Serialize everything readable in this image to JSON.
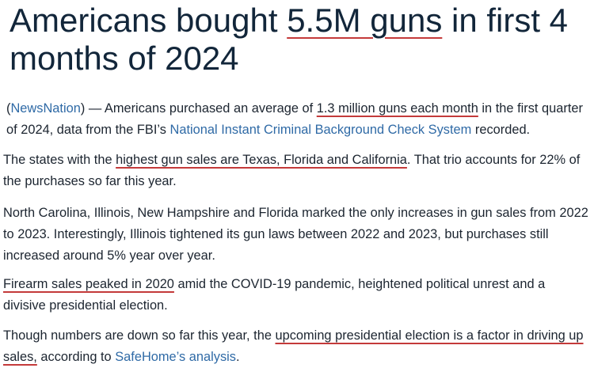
{
  "headline": {
    "segments": [
      {
        "text": "Americans bought ",
        "kind": "plain"
      },
      {
        "text": "5.5M guns",
        "kind": "marked"
      },
      {
        "text": " in first 4 months of 2024",
        "kind": "plain"
      }
    ]
  },
  "paragraphs": [
    {
      "segments": [
        {
          "text": "(",
          "kind": "plain"
        },
        {
          "text": "NewsNation",
          "kind": "link"
        },
        {
          "text": ") — Americans purchased an average of ",
          "kind": "plain"
        },
        {
          "text": "1.3 million guns each month",
          "kind": "marked"
        },
        {
          "text": " in the first quarter of 2024, data from the FBI’s ",
          "kind": "plain"
        },
        {
          "text": "National Instant Criminal Background Check System",
          "kind": "link"
        },
        {
          "text": " recorded.",
          "kind": "plain"
        }
      ]
    },
    {
      "segments": [
        {
          "text": "The states with the ",
          "kind": "plain"
        },
        {
          "text": "highest gun sales are Texas, Florida and California",
          "kind": "marked"
        },
        {
          "text": ". That trio accounts for 22% of the purchases so far this year.",
          "kind": "plain"
        }
      ]
    },
    {
      "segments": [
        {
          "text": "North Carolina, Illinois, New Hampshire and Florida marked the only increases in gun sales from 2022 to 2023. Interestingly, Illinois tightened its gun laws between 2022 and 2023, but purchases still increased around 5% year over year.",
          "kind": "plain"
        }
      ]
    },
    {
      "segments": [
        {
          "text": "Firearm sales peaked in 2020",
          "kind": "marked"
        },
        {
          "text": " amid the COVID-19 pandemic, heightened political unrest and a divisive presidential election.",
          "kind": "plain"
        }
      ]
    },
    {
      "segments": [
        {
          "text": "Though numbers are down so far this year, the ",
          "kind": "plain"
        },
        {
          "text": "upcoming presidential election is a factor in driving up sales,",
          "kind": "marked"
        },
        {
          "text": " according to ",
          "kind": "plain"
        },
        {
          "text": "SafeHome’s analysis",
          "kind": "link"
        },
        {
          "text": ".",
          "kind": "plain"
        }
      ]
    }
  ]
}
